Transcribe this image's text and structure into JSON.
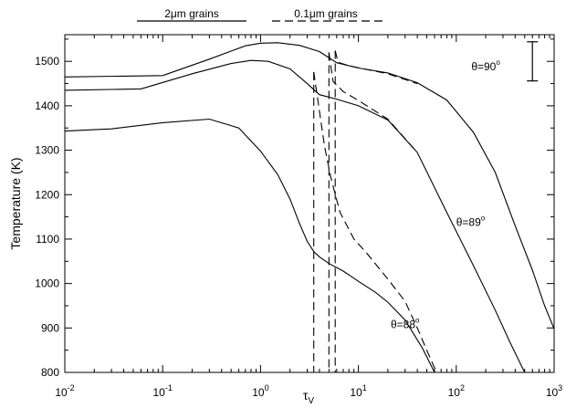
{
  "chart_data": {
    "type": "line",
    "xscale": "log",
    "xlim": [
      0.01,
      1000
    ],
    "ylim": [
      800,
      1560
    ],
    "xlabel_main": "τ",
    "xlabel_sub": "V",
    "ylabel": "Temperature (K)",
    "x_ticks": [
      {
        "value": 0.01,
        "base": "10",
        "exp": "-2"
      },
      {
        "value": 0.1,
        "base": "10",
        "exp": "-1"
      },
      {
        "value": 1,
        "base": "10",
        "exp": "0"
      },
      {
        "value": 10,
        "base": "10",
        "exp": "1"
      },
      {
        "value": 100,
        "base": "10",
        "exp": "2"
      },
      {
        "value": 1000,
        "base": "10",
        "exp": "3"
      }
    ],
    "y_ticks": [
      800,
      900,
      1000,
      1100,
      1200,
      1300,
      1400,
      1500
    ],
    "legend": {
      "solid_label": "2μm grains",
      "dashed_label": "0.1μm grains"
    },
    "annotations": [
      {
        "text": "θ=90",
        "sup": "o",
        "x": 200,
        "y": 1480
      },
      {
        "text": "θ=89",
        "sup": "o",
        "x": 140,
        "y": 1130
      },
      {
        "text": "θ=88",
        "sup": "o",
        "x": 30,
        "y": 900
      }
    ],
    "error_bar": {
      "x": 600,
      "y_low": 1456,
      "y_high": 1544
    },
    "series": [
      {
        "style": "solid",
        "label": "θ=90",
        "points": [
          [
            0.01,
            1465
          ],
          [
            0.1,
            1468
          ],
          [
            0.3,
            1505
          ],
          [
            0.7,
            1535
          ],
          [
            1.0,
            1541
          ],
          [
            1.5,
            1542
          ],
          [
            2.5,
            1536
          ],
          [
            4,
            1522
          ],
          [
            6,
            1497
          ],
          [
            10,
            1485
          ],
          [
            20,
            1474
          ],
          [
            40,
            1452
          ],
          [
            80,
            1413
          ],
          [
            150,
            1340
          ],
          [
            250,
            1250
          ],
          [
            400,
            1130
          ],
          [
            600,
            1030
          ],
          [
            800,
            950
          ],
          [
            1000,
            898
          ]
        ]
      },
      {
        "style": "solid",
        "label": "θ=89",
        "points": [
          [
            0.01,
            1435
          ],
          [
            0.06,
            1438
          ],
          [
            0.2,
            1472
          ],
          [
            0.5,
            1495
          ],
          [
            0.8,
            1502
          ],
          [
            1.2,
            1500
          ],
          [
            2,
            1483
          ],
          [
            3,
            1450
          ],
          [
            4,
            1425
          ],
          [
            6,
            1415
          ],
          [
            10,
            1400
          ],
          [
            20,
            1368
          ],
          [
            40,
            1295
          ],
          [
            80,
            1160
          ],
          [
            150,
            1040
          ],
          [
            250,
            940
          ],
          [
            350,
            870
          ],
          [
            500,
            800
          ]
        ]
      },
      {
        "style": "solid",
        "label": "θ=88",
        "points": [
          [
            0.01,
            1343
          ],
          [
            0.03,
            1348
          ],
          [
            0.1,
            1362
          ],
          [
            0.3,
            1370
          ],
          [
            0.6,
            1350
          ],
          [
            1.0,
            1298
          ],
          [
            1.5,
            1245
          ],
          [
            2,
            1190
          ],
          [
            2.5,
            1135
          ],
          [
            3,
            1095
          ],
          [
            3.5,
            1072
          ],
          [
            4,
            1060
          ],
          [
            5,
            1045
          ],
          [
            7,
            1028
          ],
          [
            10,
            1005
          ],
          [
            15,
            980
          ],
          [
            20,
            958
          ],
          [
            30,
            918
          ],
          [
            45,
            855
          ],
          [
            60,
            800
          ]
        ]
      },
      {
        "style": "dashed",
        "label": "θ=90",
        "points": [
          [
            5.8,
            1524
          ],
          [
            6.2,
            1498
          ],
          [
            8,
            1490
          ],
          [
            12,
            1482
          ],
          [
            20,
            1472
          ],
          [
            40,
            1450
          ]
        ]
      },
      {
        "style": "dashed",
        "label": "θ=89",
        "points": [
          [
            5.0,
            1520
          ],
          [
            5.5,
            1455
          ],
          [
            7,
            1432
          ],
          [
            10,
            1412
          ],
          [
            20,
            1370
          ],
          [
            40,
            1295
          ]
        ]
      },
      {
        "style": "dashed",
        "label": "θ=88",
        "points": [
          [
            3.5,
            1476
          ],
          [
            4.5,
            1310
          ],
          [
            5.2,
            1240
          ],
          [
            6.5,
            1160
          ],
          [
            9,
            1100
          ],
          [
            12,
            1070
          ],
          [
            20,
            1010
          ],
          [
            30,
            960
          ],
          [
            40,
            900
          ],
          [
            50,
            850
          ],
          [
            60,
            810
          ],
          [
            65,
            800
          ]
        ]
      },
      {
        "style": "dashed",
        "label": "",
        "points": [
          [
            3.5,
            1476
          ],
          [
            3.5,
            800
          ]
        ]
      },
      {
        "style": "dashed",
        "label": "",
        "points": [
          [
            5.0,
            1520
          ],
          [
            5.0,
            800
          ]
        ]
      },
      {
        "style": "dashed",
        "label": "",
        "points": [
          [
            5.8,
            1524
          ],
          [
            5.8,
            800
          ]
        ]
      }
    ]
  }
}
